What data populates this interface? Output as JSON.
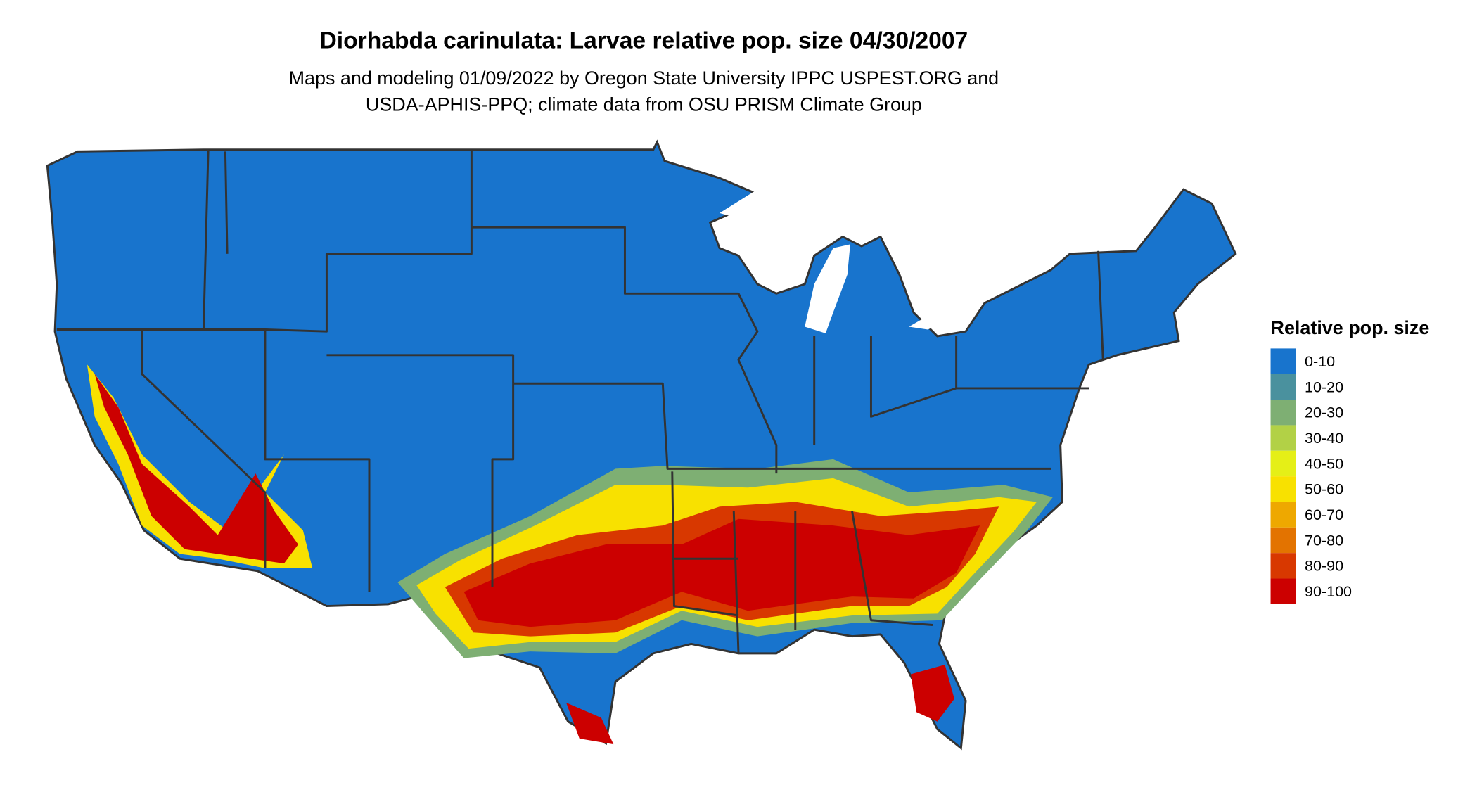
{
  "title": "Diorhabda carinulata: Larvae relative pop. size 04/30/2007",
  "subtitle_lines": [
    "Maps and modeling 01/09/2022 by Oregon State University IPPC USPEST.ORG and",
    "USDA-APHIS-PPQ; climate data from OSU PRISM Climate Group"
  ],
  "legend": {
    "title": "Relative pop. size",
    "items": [
      {
        "label": "0-10",
        "color": "#1874CD"
      },
      {
        "label": "10-20",
        "color": "#4A919E"
      },
      {
        "label": "20-30",
        "color": "#7EAF73"
      },
      {
        "label": "30-40",
        "color": "#B2D146"
      },
      {
        "label": "40-50",
        "color": "#E5EF17"
      },
      {
        "label": "50-60",
        "color": "#F8E100"
      },
      {
        "label": "60-70",
        "color": "#EEA800"
      },
      {
        "label": "70-80",
        "color": "#E37300"
      },
      {
        "label": "80-90",
        "color": "#D83800"
      },
      {
        "label": "90-100",
        "color": "#CC0000"
      }
    ]
  },
  "map": {
    "region": "Contiguous United States",
    "base_color": "#1874CD",
    "border_color": "#333333"
  }
}
